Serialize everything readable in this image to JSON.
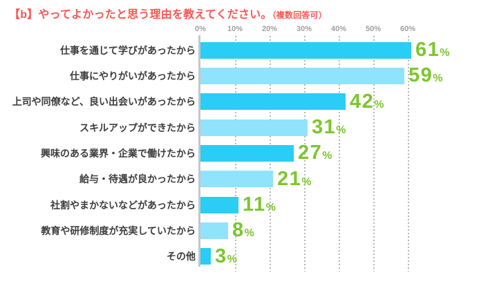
{
  "title": {
    "main": "【b】やってよかったと思う理由を教えてください。",
    "note": "（複数回答可）"
  },
  "chart_data": {
    "type": "bar",
    "orientation": "horizontal",
    "title": "【b】やってよかったと思う理由を教えてください。（複数回答可）",
    "unit": "%",
    "categories": [
      "仕事を通じて学びがあったから",
      "仕事にやりがいがあったから",
      "上司や同僚など、良い出会いがあったから",
      "スキルアップができたから",
      "興味のある業界・企業で働けたから",
      "給与・待遇が良かったから",
      "社割やまかないなどがあったから",
      "教育や研修制度が充実していたから",
      "その他"
    ],
    "values": [
      61,
      59,
      42,
      31,
      27,
      21,
      11,
      8,
      3
    ],
    "axis_ticks": [
      "0%",
      "10%",
      "20%",
      "30%",
      "40%",
      "50%",
      "60%"
    ],
    "xlim": [
      0,
      60
    ],
    "grid": "vertical-dotted",
    "legend": "none"
  },
  "colors": {
    "title": "#fb5555",
    "bar_primary": "#29cdf6",
    "bar_secondary": "#8fe3fc",
    "value_label": "#7cc62e",
    "category_label": "#3c3c3c",
    "axis_label": "#9f9f9f",
    "axis_line": "#c6c6c6",
    "gridline": "#b5b5b5"
  }
}
